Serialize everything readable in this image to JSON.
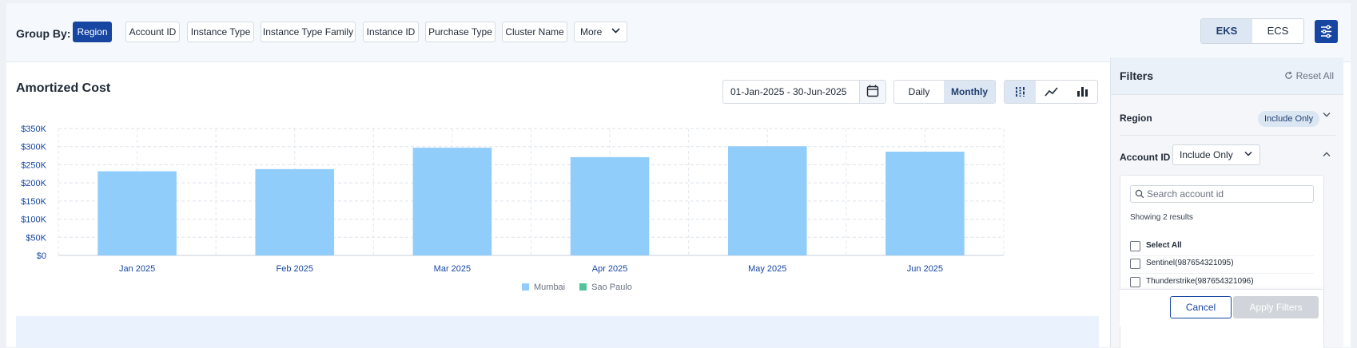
{
  "group_by": {
    "label": "Group By:",
    "options": [
      "Region",
      "Account ID",
      "Instance Type",
      "Instance Type Family",
      "Instance ID",
      "Purchase Type",
      "Cluster Name"
    ],
    "active": "Region",
    "more_label": "More"
  },
  "platform_toggle": {
    "options": [
      "EKS",
      "ECS"
    ],
    "selected": "EKS"
  },
  "chart_header": {
    "title": "Amortized Cost",
    "date_range": "01-Jan-2025 - 30-Jun-2025",
    "period_options": [
      "Daily",
      "Monthly"
    ],
    "period_selected": "Monthly"
  },
  "chart_data": {
    "type": "bar",
    "title": "Amortized Cost",
    "categories": [
      "Jan 2025",
      "Feb 2025",
      "Mar 2025",
      "Apr 2025",
      "May 2025",
      "Jun 2025"
    ],
    "series": [
      {
        "name": "Mumbai",
        "color": "#90cdfb",
        "values": [
          232000,
          238000,
          297000,
          271000,
          301000,
          286000
        ]
      },
      {
        "name": "Sao Paulo",
        "color": "#52c39a",
        "values": [
          0,
          0,
          0,
          0,
          0,
          0
        ]
      }
    ],
    "y_ticks": [
      "$0",
      "$50K",
      "$100K",
      "$150K",
      "$200K",
      "$250K",
      "$300K",
      "$350K"
    ],
    "ylim": [
      0,
      350000
    ],
    "grid": true,
    "legend_position": "bottom-center"
  },
  "filters_panel": {
    "title": "Filters",
    "reset_label": "Reset All",
    "region": {
      "label": "Region",
      "mode": "Include Only"
    },
    "account_id": {
      "label": "Account ID",
      "mode": "Include Only",
      "search_placeholder": "Search account id",
      "results_text": "Showing 2 results",
      "select_all_label": "Select All",
      "options": [
        "Sentinel(987654321095)",
        "Thunderstrike(987654321096)"
      ]
    },
    "cancel_label": "Cancel",
    "apply_label": "Apply Filters"
  }
}
